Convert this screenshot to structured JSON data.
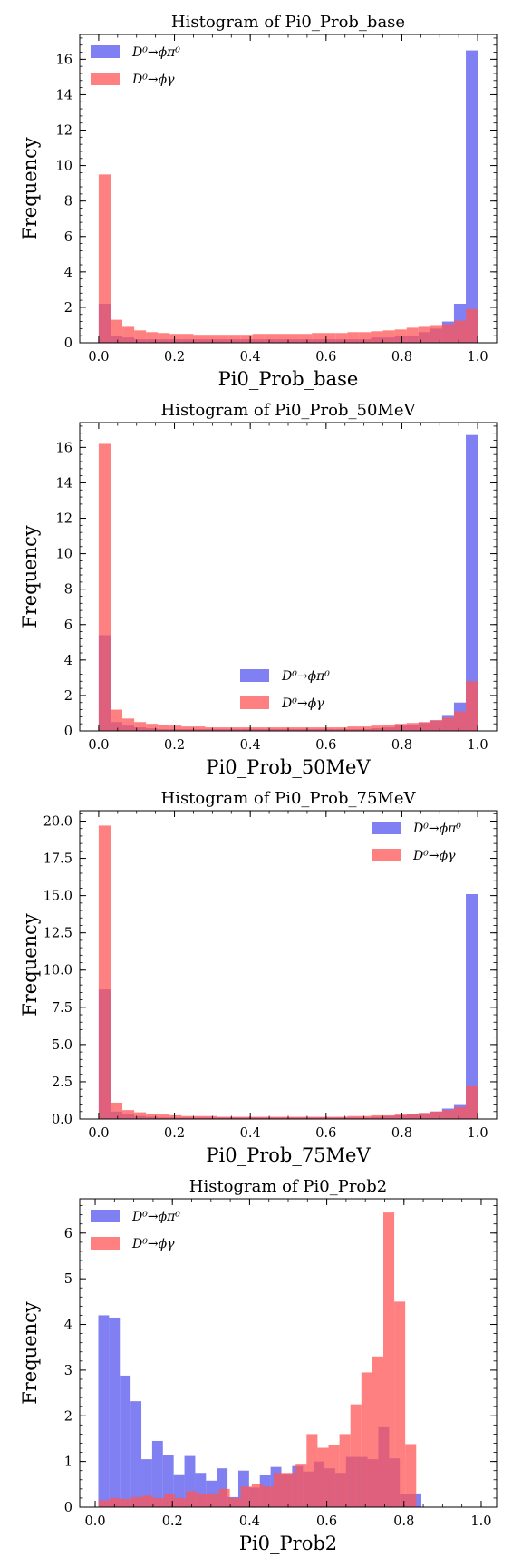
{
  "chart_data": [
    {
      "type": "bar",
      "title": "Histogram of Pi0_Prob_base",
      "xlabel": "Pi0_Prob_base",
      "ylabel": "Frequency",
      "xlim": [
        -0.05,
        1.05
      ],
      "ylim": [
        0,
        17.4
      ],
      "xticks": [
        "0.0",
        "0.2",
        "0.4",
        "0.6",
        "0.8",
        "1.0"
      ],
      "yticks": [
        "0",
        "2",
        "4",
        "6",
        "8",
        "10",
        "12",
        "14",
        "16"
      ],
      "legend_position": "top-left",
      "bin_range": [
        0,
        1
      ],
      "series": [
        {
          "name": "D⁰→ϕπ⁰",
          "color": "#5555ee",
          "values": [
            2.2,
            0.4,
            0.3,
            0.2,
            0.2,
            0.2,
            0.2,
            0.2,
            0.2,
            0.2,
            0.2,
            0.2,
            0.2,
            0.2,
            0.2,
            0.2,
            0.2,
            0.2,
            0.2,
            0.2,
            0.2,
            0.2,
            0.2,
            0.3,
            0.3,
            0.4,
            0.4,
            0.6,
            0.8,
            1.2,
            2.2,
            16.5
          ]
        },
        {
          "name": "D⁰→ϕγ",
          "color": "#ff5555",
          "values": [
            9.5,
            1.3,
            0.9,
            0.7,
            0.6,
            0.55,
            0.5,
            0.5,
            0.45,
            0.45,
            0.45,
            0.45,
            0.45,
            0.5,
            0.5,
            0.5,
            0.5,
            0.5,
            0.55,
            0.55,
            0.55,
            0.6,
            0.6,
            0.65,
            0.7,
            0.75,
            0.85,
            0.9,
            1.0,
            1.05,
            1.25,
            1.9
          ]
        }
      ]
    },
    {
      "type": "bar",
      "title": "Histogram of Pi0_Prob_50MeV",
      "xlabel": "Pi0_Prob_50MeV",
      "ylabel": "Frequency",
      "xlim": [
        -0.05,
        1.05
      ],
      "ylim": [
        0,
        17.4
      ],
      "xticks": [
        "0.0",
        "0.2",
        "0.4",
        "0.6",
        "0.8",
        "1.0"
      ],
      "yticks": [
        "0",
        "2",
        "4",
        "6",
        "8",
        "10",
        "12",
        "14",
        "16"
      ],
      "legend_position": "lower-center",
      "bin_range": [
        0,
        1
      ],
      "series": [
        {
          "name": "D⁰→ϕπ⁰",
          "color": "#5555ee",
          "values": [
            5.4,
            0.5,
            0.3,
            0.2,
            0.15,
            0.1,
            0.1,
            0.1,
            0.1,
            0.1,
            0.1,
            0.1,
            0.1,
            0.1,
            0.1,
            0.1,
            0.1,
            0.1,
            0.1,
            0.1,
            0.1,
            0.1,
            0.1,
            0.15,
            0.2,
            0.3,
            0.35,
            0.45,
            0.6,
            0.85,
            1.6,
            16.7
          ]
        },
        {
          "name": "D⁰→ϕγ",
          "color": "#ff5555",
          "values": [
            16.2,
            1.2,
            0.7,
            0.5,
            0.4,
            0.35,
            0.3,
            0.25,
            0.25,
            0.2,
            0.2,
            0.2,
            0.2,
            0.2,
            0.2,
            0.2,
            0.2,
            0.2,
            0.2,
            0.2,
            0.2,
            0.25,
            0.25,
            0.3,
            0.35,
            0.4,
            0.45,
            0.5,
            0.6,
            0.75,
            1.1,
            2.8
          ]
        }
      ]
    },
    {
      "type": "bar",
      "title": "Histogram of Pi0_Prob_75MeV",
      "xlabel": "Pi0_Prob_75MeV",
      "ylabel": "Frequency",
      "xlim": [
        -0.05,
        1.05
      ],
      "ylim": [
        0,
        20.7
      ],
      "xticks": [
        "0.0",
        "0.2",
        "0.4",
        "0.6",
        "0.8",
        "1.0"
      ],
      "yticks": [
        "0.0",
        "2.5",
        "5.0",
        "7.5",
        "10.0",
        "12.5",
        "15.0",
        "17.5",
        "20.0"
      ],
      "legend_position": "top-right",
      "bin_range": [
        0,
        1
      ],
      "series": [
        {
          "name": "D⁰→ϕπ⁰",
          "color": "#5555ee",
          "values": [
            8.7,
            0.5,
            0.3,
            0.2,
            0.15,
            0.1,
            0.1,
            0.1,
            0.1,
            0.1,
            0.1,
            0.1,
            0.1,
            0.1,
            0.1,
            0.1,
            0.1,
            0.1,
            0.1,
            0.1,
            0.1,
            0.1,
            0.1,
            0.15,
            0.2,
            0.25,
            0.3,
            0.4,
            0.5,
            0.7,
            1.0,
            15.1
          ]
        },
        {
          "name": "D⁰→ϕγ",
          "color": "#ff5555",
          "values": [
            19.7,
            1.1,
            0.6,
            0.45,
            0.35,
            0.3,
            0.25,
            0.2,
            0.2,
            0.2,
            0.15,
            0.15,
            0.15,
            0.15,
            0.15,
            0.15,
            0.15,
            0.15,
            0.15,
            0.15,
            0.15,
            0.2,
            0.2,
            0.25,
            0.25,
            0.3,
            0.35,
            0.4,
            0.5,
            0.6,
            0.8,
            2.2
          ]
        }
      ]
    },
    {
      "type": "bar",
      "title": "Histogram of Pi0_Prob2",
      "xlabel": "Pi0_Prob2",
      "ylabel": "Frequency",
      "xlim": [
        -0.04,
        1.04
      ],
      "ylim": [
        0,
        6.75
      ],
      "xticks": [
        "0.0",
        "0.2",
        "0.4",
        "0.6",
        "0.8",
        "1.0"
      ],
      "yticks": [
        "0",
        "1",
        "2",
        "3",
        "4",
        "5",
        "6"
      ],
      "legend_position": "top-left",
      "series": [
        {
          "name": "D⁰→ϕπ⁰",
          "color": "#5555ee",
          "bin_range": [
            0.0081,
            0.8451
          ],
          "values": [
            4.2,
            4.15,
            2.88,
            2.32,
            1.05,
            1.45,
            1.15,
            0.72,
            1.12,
            0.75,
            0.58,
            0.85,
            0.22,
            0.8,
            0.43,
            0.7,
            0.88,
            0.73,
            0.9,
            0.78,
            1.0,
            0.85,
            0.75,
            1.1,
            1.1,
            1.05,
            1.75,
            1.07,
            0.28,
            0.3
          ]
        },
        {
          "name": "D⁰→ϕγ",
          "color": "#ff5555",
          "bin_range": [
            0.0081,
            0.8601
          ],
          "values": [
            0.15,
            0.2,
            0.18,
            0.22,
            0.25,
            0.2,
            0.28,
            0.2,
            0.35,
            0.3,
            0.3,
            0.4,
            0.2,
            0.45,
            0.5,
            0.45,
            0.75,
            0.75,
            0.95,
            1.6,
            1.3,
            1.35,
            1.6,
            2.25,
            2.95,
            3.3,
            6.45,
            4.5,
            1.38,
            0.0
          ]
        }
      ]
    }
  ]
}
